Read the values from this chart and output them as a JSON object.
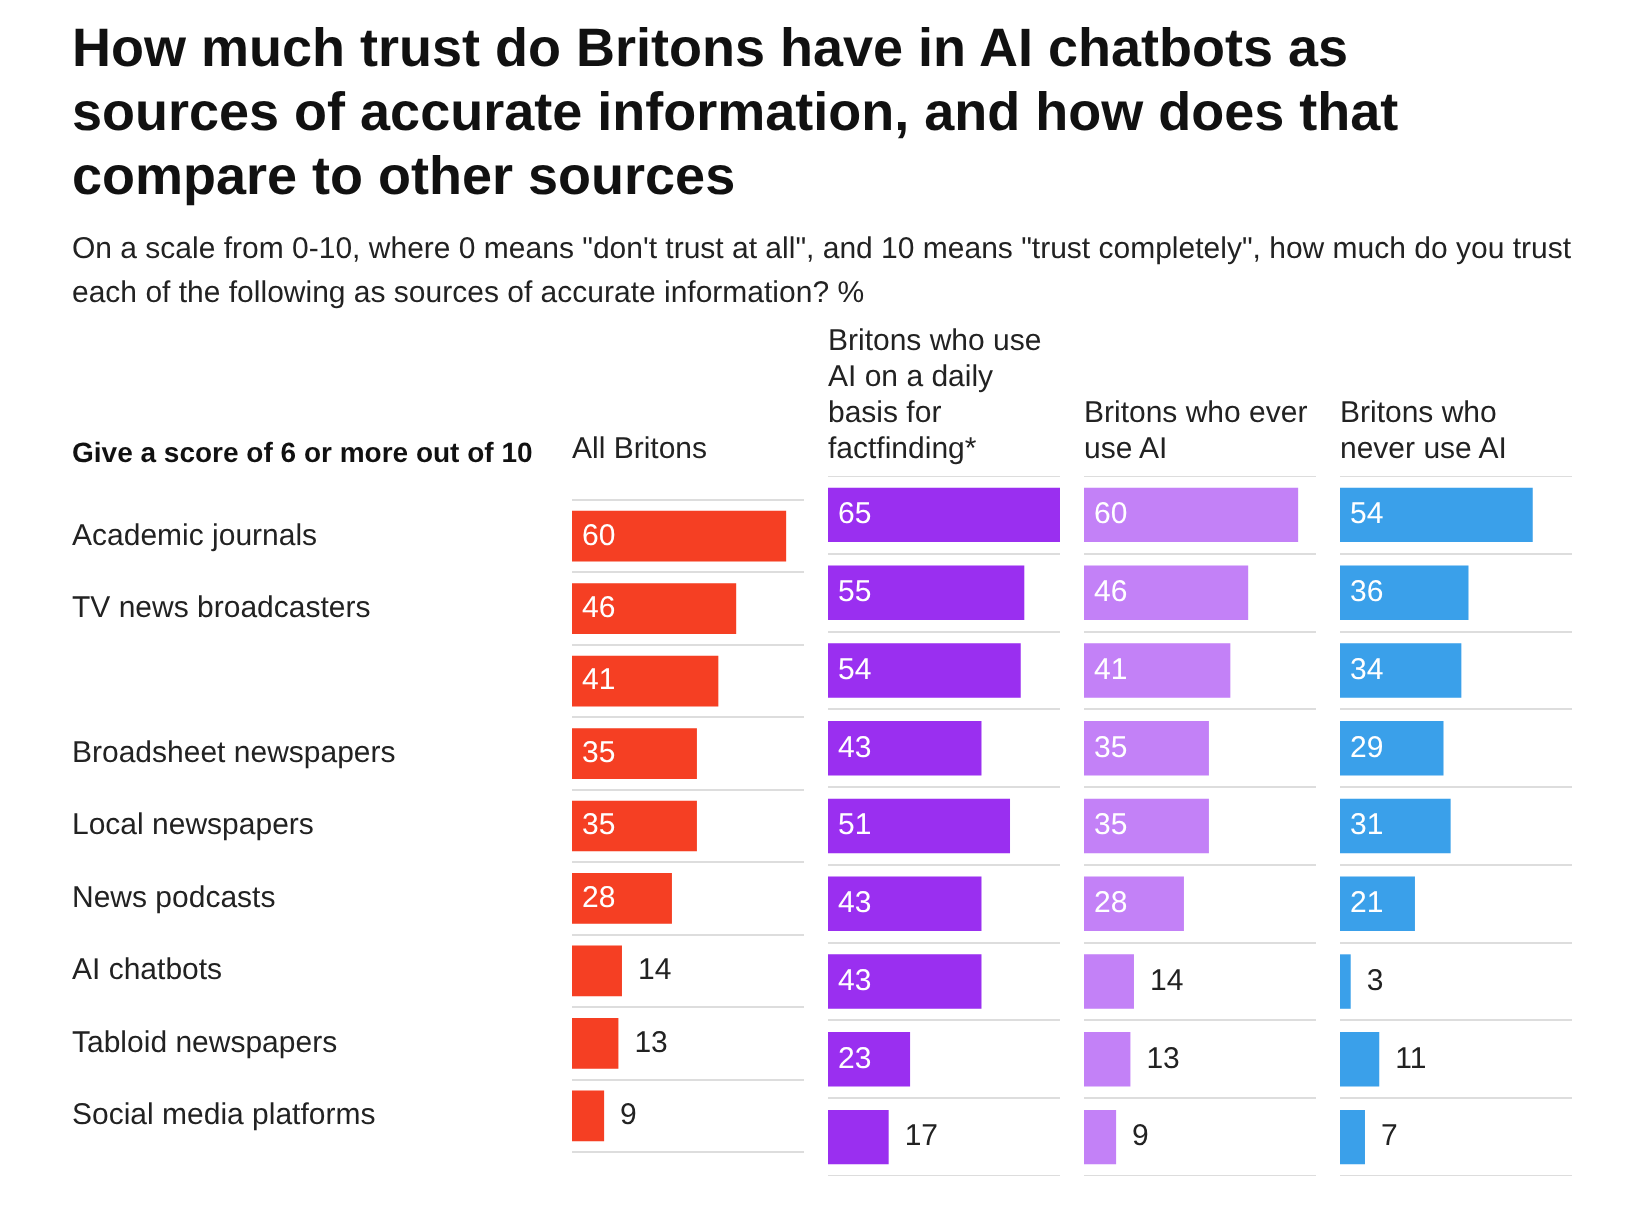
{
  "chart_data": [
    {
      "type": "bar",
      "orientation": "horizontal",
      "title": "How much trust do Britons have in AI chatbots as sources of accurate information, and how does that compare to other sources",
      "subtitle": "On a scale from 0-10, where 0 means \"don't trust at all\", and 10 means \"trust completely\", how much do you trust each of the following as sources of accurate information? %",
      "annotations": [
        "Give a score of 6 or more out of 10"
      ],
      "categories": [
        "Academic journals",
        "TV news broadcasters",
        null,
        "Broadsheet newspapers",
        "Local newspapers",
        "News podcasts",
        "AI chatbots",
        "Tabloid newspapers",
        "Social media platforms"
      ],
      "series": [
        {
          "name": "All Britons",
          "color": "#f53f23",
          "values": [
            60,
            46,
            41,
            35,
            35,
            28,
            14,
            13,
            9
          ]
        }
      ],
      "data_labels": true,
      "grid": "y"
    },
    {
      "type": "bar",
      "orientation": "horizontal",
      "tick_labels": false,
      "series": [
        {
          "name": "Britons who use AI on a daily basis for factfinding*",
          "color": "#9a2ff0",
          "values": [
            65,
            55,
            54,
            43,
            51,
            43,
            43,
            23,
            17
          ]
        }
      ],
      "data_labels": true,
      "grid": "y"
    },
    {
      "type": "bar",
      "orientation": "horizontal",
      "tick_labels": false,
      "series": [
        {
          "name": "Britons who ever use AI",
          "color": "#c381f7",
          "values": [
            60,
            46,
            41,
            35,
            35,
            28,
            14,
            13,
            9
          ]
        }
      ],
      "data_labels": true,
      "grid": "y"
    },
    {
      "type": "bar",
      "orientation": "horizontal",
      "tick_labels": false,
      "series": [
        {
          "name": "Britons who never use AI",
          "color": "#3aa0ea",
          "values": [
            54,
            36,
            34,
            29,
            31,
            21,
            3,
            11,
            7
          ]
        }
      ],
      "data_labels": true,
      "grid": "y"
    }
  ]
}
